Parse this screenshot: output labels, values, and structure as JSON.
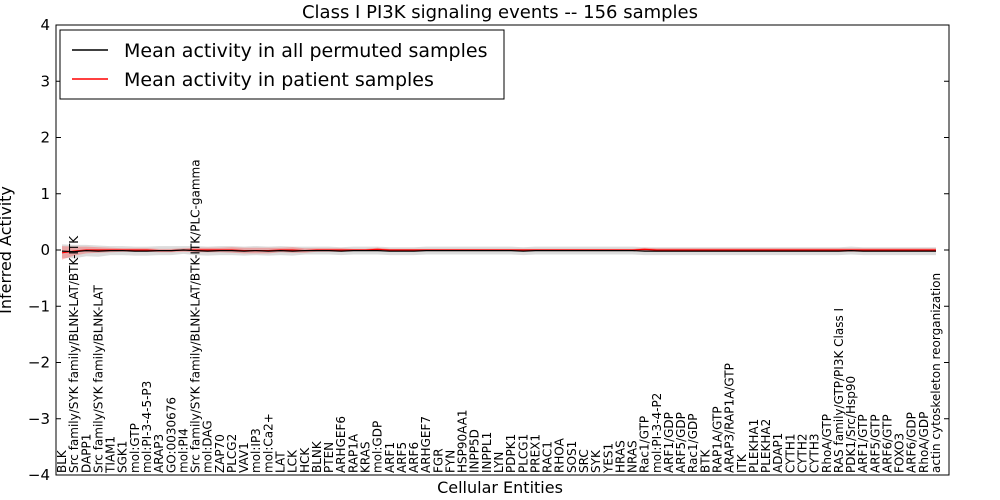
{
  "chart_data": {
    "type": "line",
    "title": "Class I PI3K signaling events -- 156 samples",
    "xlabel": "Cellular Entities",
    "ylabel": "Inferred Activity",
    "ylim": [
      -4,
      4
    ],
    "yticks": [
      -4,
      -3,
      -2,
      -1,
      0,
      1,
      2,
      3,
      4
    ],
    "ytick_labels": [
      "−4",
      "−3",
      "−2",
      "−1",
      "0",
      "1",
      "2",
      "3",
      "4"
    ],
    "grid": false,
    "legend_position": "top-left",
    "categories": [
      "BLK",
      "Src family/SYK family/BLNK-LAT/BTK-ITK",
      "DAPP1",
      "Src family/SYK family/BLNK-LAT",
      "TIAM1",
      "SGK1",
      "mol:GTP",
      "mol:PI-3-4-5-P3",
      "ARAP3",
      "GO:0030676",
      "mol:PI4",
      "Src family/SYK family/BLNK-LAT/BTK-ITK/PLC-gamma",
      "mol:DAG",
      "ZAP70",
      "PLCG2",
      "VAV1",
      "mol:IP3",
      "mol:Ca2+",
      "LAT",
      "LCK",
      "HCK",
      "BLNK",
      "PTEN",
      "ARHGEF6",
      "RAP1A",
      "KRAS",
      "mol:GDP",
      "ARF1",
      "ARF5",
      "ARF6",
      "ARHGEF7",
      "FGR",
      "FYN",
      "HSP90AA1",
      "INPP5D",
      "INPPL1",
      "LYN",
      "PDPK1",
      "PLCG1",
      "PREX1",
      "RAC1",
      "RHOA",
      "SOS1",
      "SRC",
      "SYK",
      "YES1",
      "HRAS",
      "NRAS",
      "Rac1/GTP",
      "mol:PI-3-4-P2",
      "ARF1/GDP",
      "ARF5/GDP",
      "Rac1/GDP",
      "BTK",
      "RAP1A/GTP",
      "ARAP3/RAP1A/GTP",
      "ITK",
      "PLEKHA1",
      "PLEKHA2",
      "ADAP1",
      "CYTH1",
      "CYTH2",
      "CYTH3",
      "RhoA/GTP",
      "RAS family/GTP/PI3K Class I",
      "PDK1/Src/Hsp90",
      "ARF1/GTP",
      "ARF5/GTP",
      "ARF6/GTP",
      "FOXO3",
      "ARF6/GDP",
      "RhoA/GDP",
      "actin cytoskeleton reorganization"
    ],
    "series": [
      {
        "name": "Mean activity in all permuted samples",
        "color": "#000000",
        "values": [
          -0.02,
          -0.03,
          -0.01,
          -0.02,
          -0.01,
          -0.01,
          -0.02,
          -0.02,
          -0.01,
          -0.01,
          0,
          -0.01,
          -0.02,
          -0.01,
          -0.01,
          -0.02,
          -0.01,
          -0.02,
          -0.01,
          -0.02,
          -0.01,
          -0.01,
          -0.01,
          -0.02,
          -0.01,
          -0.01,
          -0.01,
          -0.02,
          -0.02,
          -0.02,
          -0.01,
          -0.01,
          -0.01,
          -0.01,
          -0.01,
          -0.01,
          -0.01,
          -0.01,
          -0.02,
          -0.01,
          -0.01,
          -0.01,
          -0.01,
          -0.01,
          -0.01,
          -0.01,
          -0.01,
          -0.01,
          -0.02,
          -0.02,
          -0.02,
          -0.02,
          -0.02,
          -0.02,
          -0.02,
          -0.02,
          -0.02,
          -0.02,
          -0.02,
          -0.02,
          -0.02,
          -0.02,
          -0.02,
          -0.02,
          -0.02,
          -0.01,
          -0.02,
          -0.02,
          -0.02,
          -0.02,
          -0.02,
          -0.02,
          -0.02
        ],
        "spread": [
          0.12,
          0.12,
          0.1,
          0.1,
          0.08,
          0.08,
          0.08,
          0.08,
          0.08,
          0.08,
          0.07,
          0.08,
          0.08,
          0.08,
          0.08,
          0.08,
          0.08,
          0.08,
          0.08,
          0.08,
          0.07,
          0.07,
          0.07,
          0.07,
          0.07,
          0.07,
          0.07,
          0.07,
          0.07,
          0.07,
          0.07,
          0.07,
          0.07,
          0.07,
          0.07,
          0.07,
          0.07,
          0.07,
          0.07,
          0.07,
          0.07,
          0.07,
          0.07,
          0.07,
          0.07,
          0.07,
          0.07,
          0.07,
          0.07,
          0.07,
          0.07,
          0.07,
          0.07,
          0.07,
          0.07,
          0.07,
          0.07,
          0.07,
          0.07,
          0.07,
          0.07,
          0.07,
          0.07,
          0.07,
          0.07,
          0.07,
          0.07,
          0.07,
          0.07,
          0.07,
          0.07,
          0.07,
          0.07
        ]
      },
      {
        "name": "Mean activity in patient samples",
        "color": "#ff0000",
        "values": [
          -0.05,
          -0.02,
          0,
          0,
          0,
          0,
          0,
          0,
          -0.01,
          -0.01,
          0,
          0,
          0,
          0,
          0,
          -0.01,
          -0.01,
          -0.01,
          0,
          0,
          -0.01,
          0,
          0,
          0,
          0,
          0,
          0.01,
          0,
          0,
          0,
          0,
          0,
          0,
          0,
          0,
          0,
          0,
          0,
          0,
          0,
          0,
          0,
          0,
          0,
          0,
          0,
          0,
          0,
          0.01,
          0,
          0,
          0,
          0,
          0,
          0,
          0,
          0,
          0,
          0,
          0,
          0,
          0,
          0,
          0,
          0,
          0,
          0,
          0,
          0,
          0,
          0,
          0,
          0
        ],
        "spread": [
          0.12,
          0.08,
          0.06,
          0.05,
          0.04,
          0.03,
          0.03,
          0.03,
          0.03,
          0.03,
          0.03,
          0.04,
          0.04,
          0.04,
          0.05,
          0.05,
          0.05,
          0.05,
          0.04,
          0.05,
          0.04,
          0.03,
          0.03,
          0.03,
          0.02,
          0.02,
          0.03,
          0.02,
          0.02,
          0.02,
          0.02,
          0.02,
          0.02,
          0.02,
          0.02,
          0.02,
          0.02,
          0.02,
          0.02,
          0.02,
          0.02,
          0.02,
          0.02,
          0.02,
          0.02,
          0.02,
          0.02,
          0.02,
          0.03,
          0.03,
          0.03,
          0.03,
          0.03,
          0.03,
          0.03,
          0.03,
          0.03,
          0.03,
          0.03,
          0.03,
          0.03,
          0.03,
          0.03,
          0.03,
          0.03,
          0.03,
          0.03,
          0.03,
          0.03,
          0.03,
          0.03,
          0.03,
          0.03
        ]
      }
    ]
  }
}
